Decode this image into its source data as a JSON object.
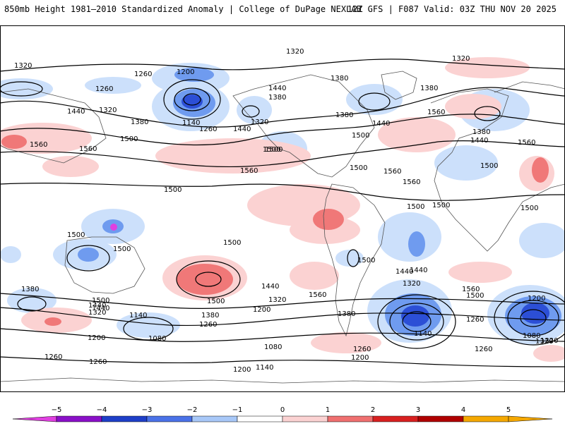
{
  "header": {
    "title_left": "850mb Height 1981–2010 Standardized Anomaly | College of DuPage NEXLAB",
    "title_right": "12Z GFS | F087 Valid: 03Z THU NOV 20 2025"
  },
  "map": {
    "variable": "850mb geopotential height (m) with standardized anomaly shading",
    "contour_labels": [
      "1320",
      "1320",
      "1260",
      "1200",
      "1260",
      "1320",
      "1380",
      "1320",
      "1380",
      "1440",
      "1380",
      "1500",
      "1440",
      "1140",
      "1260",
      "1380",
      "1440",
      "1500",
      "1320",
      "1560",
      "1560",
      "1500",
      "1560",
      "1500",
      "1560",
      "1500",
      "1500",
      "1500",
      "1500",
      "1500",
      "1500",
      "1500",
      "1380",
      "1500",
      "1440",
      "1320",
      "1140",
      "1080",
      "1260",
      "1200",
      "1260",
      "1260",
      "1200",
      "1140",
      "1080",
      "1200",
      "1260",
      "1320",
      "1380",
      "1440",
      "1500",
      "1560",
      "1320",
      "1440",
      "1560",
      "1500",
      "1200",
      "1080",
      "1140",
      "1260",
      "1320",
      "1260",
      "1200",
      "1500",
      "1440",
      "1380",
      "1560",
      "1440",
      "1500",
      "1560",
      "1380",
      "1440",
      "1500",
      "1560",
      "1320",
      "1380",
      "1440"
    ],
    "shading_colors": {
      "neg5": "#e040e0",
      "neg4": "#6a0dad",
      "neg3": "#2c4fd6",
      "neg2": "#6f9bef",
      "neg1": "#cce0fb",
      "zero": "#ffffff",
      "pos1": "#fbd2d2",
      "pos2": "#f07878",
      "pos3": "#c81616",
      "pos4": "#a00000",
      "pos5": "#f5b800"
    }
  },
  "colorbar": {
    "ticks": [
      "−5",
      "−4",
      "−3",
      "−2",
      "−1",
      "0",
      "1",
      "2",
      "3",
      "4",
      "5"
    ],
    "colors": [
      "#e040e0",
      "#8a10c8",
      "#1e3fc8",
      "#4a72e8",
      "#a8c8f8",
      "#ffffff",
      "#fbd2d2",
      "#f07070",
      "#d82020",
      "#b00000",
      "#f5a800"
    ]
  }
}
